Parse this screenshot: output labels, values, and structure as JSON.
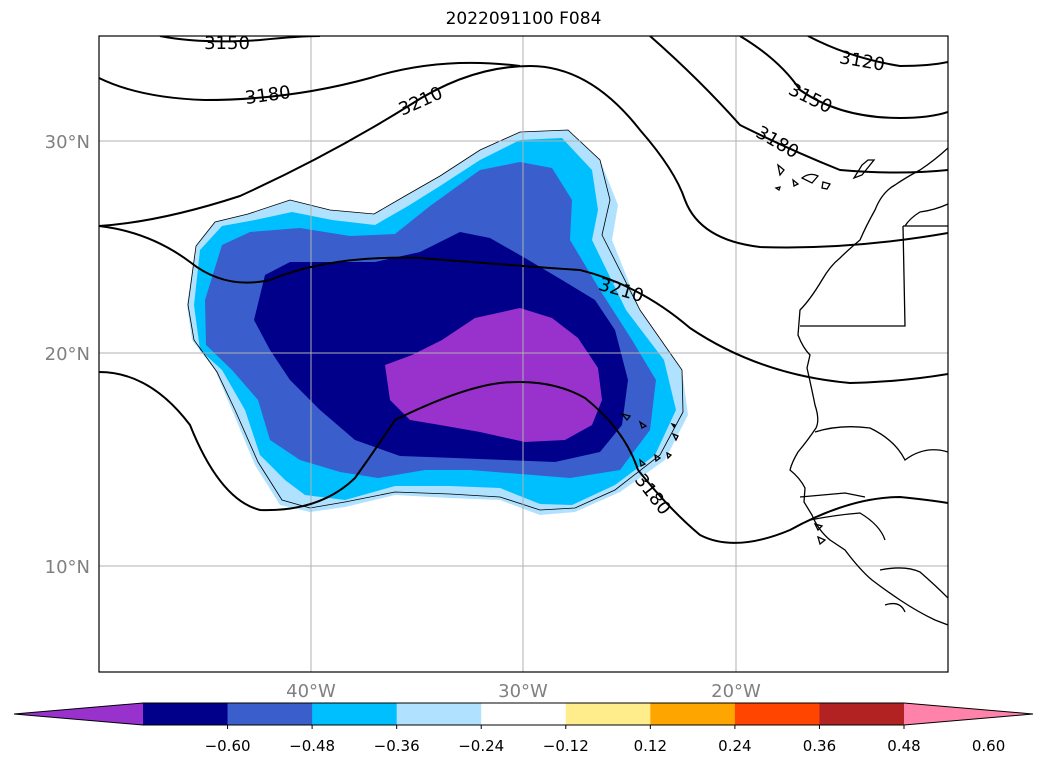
{
  "title": "2022091100 F084",
  "map": {
    "lat_labels": [
      "30°N",
      "20°N",
      "10°N"
    ],
    "lon_labels": [
      "40°W",
      "30°W",
      "20°W"
    ],
    "contour_labels": [
      "3150",
      "3180",
      "3210",
      "3120",
      "3150",
      "3180",
      "3210",
      "3180"
    ]
  },
  "colorbar": {
    "ticks": [
      "−0.60",
      "−0.48",
      "−0.36",
      "−0.24",
      "−0.12",
      "0.12",
      "0.24",
      "0.36",
      "0.48",
      "0.60"
    ],
    "colors": [
      "#9932cc",
      "#00008b",
      "#3a5fcd",
      "#00bfff",
      "#b0e2ff",
      "#ffffff",
      "#ffec8b",
      "#ffa500",
      "#ff4500",
      "#b22222",
      "#ff82ab"
    ]
  },
  "colors": {
    "purple": "#9932cc",
    "navy": "#00008b",
    "royal_blue": "#3a5fcd",
    "deep_sky": "#00bfff",
    "light_sky": "#b0e2ff",
    "grid": "#b0b0b0",
    "label_gray": "#808080"
  }
}
